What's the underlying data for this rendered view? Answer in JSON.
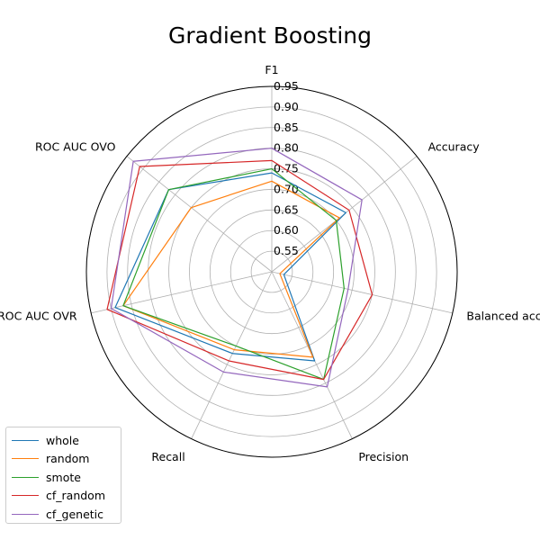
{
  "chart_data": {
    "type": "radar",
    "title": "Gradient Boosting",
    "axes": [
      "F1",
      "Accuracy",
      "Balanced accuracy",
      "Precision",
      "Recall",
      "ROC AUC OVR",
      "ROC AUC OVO"
    ],
    "r_ticks": [
      0.55,
      0.6,
      0.65,
      0.7,
      0.75,
      0.8,
      0.85,
      0.9,
      0.95
    ],
    "r_tick_labels": [
      "0.55",
      "0.60",
      "0.65",
      "0.70",
      "0.75",
      "0.80",
      "0.85",
      "0.90",
      "0.95"
    ],
    "rlim": [
      0.5,
      0.95
    ],
    "grid": true,
    "legend_position": "bottom-left",
    "series": [
      {
        "name": "whole",
        "color": "#1f77b4",
        "values": [
          0.74,
          0.73,
          0.53,
          0.74,
          0.72,
          0.89,
          0.82
        ]
      },
      {
        "name": "random",
        "color": "#ff7f0e",
        "values": [
          0.72,
          0.71,
          0.52,
          0.73,
          0.71,
          0.87,
          0.75
        ]
      },
      {
        "name": "smote",
        "color": "#2ca02c",
        "values": [
          0.75,
          0.7,
          0.68,
          0.79,
          0.7,
          0.87,
          0.82
        ]
      },
      {
        "name": "cf_random",
        "color": "#d62728",
        "values": [
          0.77,
          0.74,
          0.75,
          0.79,
          0.74,
          0.91,
          0.91
        ]
      },
      {
        "name": "cf_genetic",
        "color": "#9467bd",
        "values": [
          0.8,
          0.78,
          0.69,
          0.81,
          0.77,
          0.9,
          0.93
        ]
      }
    ]
  }
}
